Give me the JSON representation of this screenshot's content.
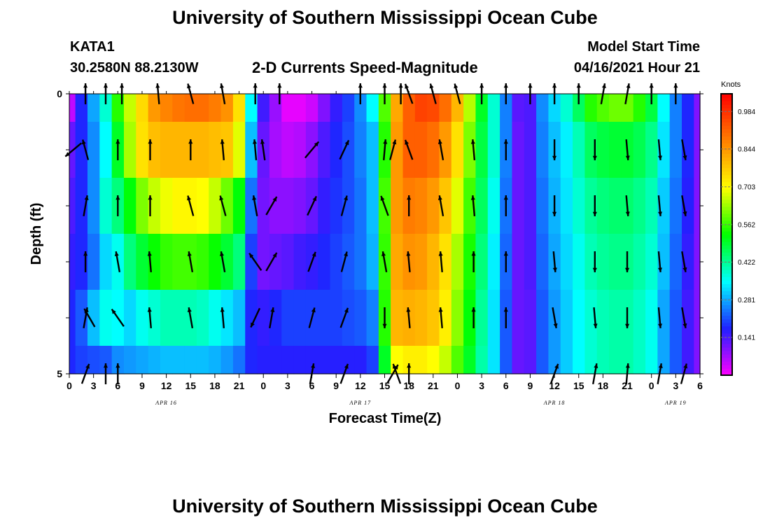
{
  "page": {
    "title_top": "University of Southern Mississippi Ocean Cube",
    "title_bottom": "University of Southern Mississippi Ocean Cube",
    "station": "KATA1",
    "coords": "30.2580N  88.2130W",
    "plot_title": "2-D Currents Speed-Magnitude",
    "start_label": "Model Start Time",
    "start_value": "04/16/2021 Hour 21"
  },
  "colors": {
    "arrow": "#000000",
    "colormap": [
      "#ff00ff",
      "#2020ff",
      "#00ffff",
      "#00ff00",
      "#ffff00",
      "#ff8000",
      "#ff0000"
    ]
  },
  "chart_data": {
    "type": "heatmap",
    "title": "2-D Currents Speed-Magnitude",
    "xlabel": "Forecast Time(Z)",
    "ylabel": "Depth (ft)",
    "x_tick_labels": [
      "0",
      "3",
      "6",
      "9",
      "12",
      "15",
      "18",
      "21",
      "0",
      "3",
      "6",
      "9",
      "12",
      "15",
      "18",
      "21",
      "0",
      "3",
      "6",
      "9",
      "12",
      "15",
      "18",
      "21",
      "0",
      "3",
      "6"
    ],
    "date_labels": [
      "APR 16",
      "APR 17",
      "APR 18",
      "APR 19"
    ],
    "date_label_ticks": [
      4,
      12,
      20,
      25
    ],
    "y_tick_labels": [
      "0",
      "5"
    ],
    "xlim_hours": [
      0,
      78
    ],
    "ylim_ft": [
      0,
      5
    ],
    "colorbar": {
      "title": "Knots",
      "tick_labels": [
        "0.984",
        "0.844",
        "0.703",
        "0.562",
        "0.422",
        "0.281",
        "0.141"
      ],
      "range": [
        0,
        1.05
      ]
    },
    "hours": [
      0,
      1.5,
      3,
      4.5,
      6,
      7.5,
      9,
      10.5,
      12,
      13.5,
      15,
      16.5,
      18,
      19.5,
      21,
      22.5,
      24,
      25.5,
      27,
      28.5,
      30,
      31.5,
      33,
      34.5,
      36,
      37.5,
      39,
      40.5,
      42,
      43.5,
      45,
      46.5,
      48,
      49.5,
      51,
      52.5,
      54,
      55.5,
      57,
      58.5,
      60,
      61.5,
      63,
      64.5,
      66,
      67.5,
      69,
      70.5,
      72,
      73.5,
      75,
      76.5,
      78
    ],
    "depth_layers_ft": [
      0.25,
      1.25,
      2.25,
      3.25,
      4.25,
      4.75
    ],
    "speed_knots": [
      [
        0.05,
        0.18,
        0.28,
        0.38,
        0.55,
        0.66,
        0.75,
        0.84,
        0.87,
        0.89,
        0.9,
        0.9,
        0.88,
        0.85,
        0.74,
        0.35,
        0.15,
        0.08,
        0.02,
        0.02,
        0.04,
        0.1,
        0.16,
        0.2,
        0.26,
        0.35,
        0.58,
        0.82,
        0.92,
        0.96,
        0.95,
        0.9,
        0.8,
        0.65,
        0.5,
        0.38,
        0.25,
        0.13,
        0.14,
        0.26,
        0.32,
        0.38,
        0.46,
        0.55,
        0.58,
        0.6,
        0.6,
        0.55,
        0.48,
        0.35,
        0.25,
        0.18,
        0.1
      ],
      [
        0.12,
        0.18,
        0.26,
        0.35,
        0.5,
        0.64,
        0.74,
        0.79,
        0.8,
        0.8,
        0.8,
        0.8,
        0.79,
        0.78,
        0.68,
        0.3,
        0.12,
        0.07,
        0.05,
        0.06,
        0.09,
        0.14,
        0.18,
        0.21,
        0.25,
        0.3,
        0.55,
        0.84,
        0.92,
        0.92,
        0.9,
        0.84,
        0.74,
        0.61,
        0.48,
        0.38,
        0.25,
        0.12,
        0.14,
        0.25,
        0.3,
        0.34,
        0.4,
        0.46,
        0.48,
        0.49,
        0.49,
        0.47,
        0.43,
        0.33,
        0.25,
        0.18,
        0.1
      ],
      [
        0.14,
        0.18,
        0.26,
        0.38,
        0.44,
        0.52,
        0.61,
        0.66,
        0.69,
        0.71,
        0.71,
        0.7,
        0.66,
        0.6,
        0.52,
        0.24,
        0.11,
        0.09,
        0.09,
        0.1,
        0.12,
        0.16,
        0.19,
        0.21,
        0.24,
        0.3,
        0.57,
        0.84,
        0.88,
        0.87,
        0.84,
        0.78,
        0.68,
        0.57,
        0.46,
        0.36,
        0.24,
        0.12,
        0.14,
        0.24,
        0.29,
        0.33,
        0.38,
        0.42,
        0.44,
        0.45,
        0.45,
        0.43,
        0.4,
        0.31,
        0.24,
        0.17,
        0.1
      ],
      [
        0.16,
        0.18,
        0.24,
        0.32,
        0.36,
        0.44,
        0.49,
        0.53,
        0.56,
        0.57,
        0.57,
        0.56,
        0.53,
        0.49,
        0.44,
        0.2,
        0.11,
        0.12,
        0.13,
        0.15,
        0.16,
        0.18,
        0.2,
        0.22,
        0.24,
        0.29,
        0.56,
        0.82,
        0.85,
        0.84,
        0.8,
        0.74,
        0.64,
        0.54,
        0.44,
        0.34,
        0.23,
        0.12,
        0.14,
        0.23,
        0.28,
        0.32,
        0.36,
        0.4,
        0.42,
        0.43,
        0.43,
        0.41,
        0.38,
        0.3,
        0.23,
        0.16,
        0.1
      ],
      [
        0.18,
        0.22,
        0.3,
        0.36,
        0.35,
        0.32,
        0.36,
        0.38,
        0.4,
        0.4,
        0.4,
        0.39,
        0.36,
        0.33,
        0.3,
        0.18,
        0.16,
        0.18,
        0.2,
        0.2,
        0.2,
        0.2,
        0.2,
        0.21,
        0.22,
        0.25,
        0.55,
        0.8,
        0.81,
        0.8,
        0.78,
        0.72,
        0.62,
        0.52,
        0.42,
        0.33,
        0.22,
        0.12,
        0.13,
        0.22,
        0.27,
        0.31,
        0.35,
        0.38,
        0.4,
        0.41,
        0.41,
        0.39,
        0.36,
        0.28,
        0.22,
        0.15,
        0.1
      ],
      [
        0.18,
        0.2,
        0.21,
        0.22,
        0.26,
        0.27,
        0.28,
        0.29,
        0.3,
        0.3,
        0.3,
        0.3,
        0.29,
        0.27,
        0.24,
        0.18,
        0.17,
        0.17,
        0.17,
        0.17,
        0.17,
        0.17,
        0.17,
        0.17,
        0.17,
        0.2,
        0.5,
        0.7,
        0.72,
        0.72,
        0.7,
        0.66,
        0.58,
        0.5,
        0.41,
        0.33,
        0.22,
        0.12,
        0.13,
        0.22,
        0.27,
        0.31,
        0.35,
        0.38,
        0.4,
        0.41,
        0.41,
        0.39,
        0.36,
        0.28,
        0.22,
        0.15,
        0.1
      ]
    ],
    "arrow_rows": [
      {
        "depth_ft": 0.0,
        "vectors": [
          [
            2,
            270
          ],
          [
            4.5,
            270
          ],
          [
            6.5,
            270
          ],
          [
            11,
            265
          ],
          [
            15,
            255
          ],
          [
            19,
            260
          ],
          [
            23,
            270
          ],
          [
            26,
            270
          ],
          [
            36,
            270
          ],
          [
            39,
            270
          ],
          [
            41,
            270
          ],
          [
            42,
            250
          ],
          [
            45,
            255
          ],
          [
            48,
            255
          ],
          [
            51,
            270
          ],
          [
            54,
            270
          ],
          [
            57,
            270
          ],
          [
            60,
            270
          ],
          [
            63,
            270
          ],
          [
            66,
            280
          ],
          [
            69,
            280
          ],
          [
            72,
            270
          ],
          [
            75,
            270
          ]
        ]
      },
      {
        "depth_ft": 1.0,
        "vectors": [
          [
            0.5,
            140
          ],
          [
            2,
            255
          ],
          [
            6,
            270
          ],
          [
            10,
            270
          ],
          [
            15,
            270
          ],
          [
            19,
            265
          ],
          [
            23,
            265
          ],
          [
            24,
            262
          ],
          [
            30,
            -50
          ],
          [
            34,
            -65
          ],
          [
            39,
            -85
          ],
          [
            40,
            -75
          ],
          [
            42,
            250
          ],
          [
            46,
            260
          ],
          [
            50,
            265
          ],
          [
            54,
            270
          ],
          [
            60,
            90
          ],
          [
            65,
            90
          ],
          [
            69,
            85
          ],
          [
            73,
            85
          ],
          [
            76,
            80
          ]
        ]
      },
      {
        "depth_ft": 2.0,
        "vectors": [
          [
            2,
            280
          ],
          [
            6,
            270
          ],
          [
            10,
            270
          ],
          [
            15,
            255
          ],
          [
            19,
            255
          ],
          [
            23,
            260
          ],
          [
            25,
            -60
          ],
          [
            30,
            -65
          ],
          [
            34,
            -75
          ],
          [
            39,
            -110
          ],
          [
            42,
            270
          ],
          [
            46,
            260
          ],
          [
            50,
            265
          ],
          [
            54,
            270
          ],
          [
            60,
            90
          ],
          [
            65,
            90
          ],
          [
            69,
            85
          ],
          [
            73,
            85
          ],
          [
            76,
            80
          ]
        ]
      },
      {
        "depth_ft": 3.0,
        "vectors": [
          [
            2,
            -90
          ],
          [
            6,
            260
          ],
          [
            10,
            265
          ],
          [
            15,
            260
          ],
          [
            19,
            260
          ],
          [
            23,
            -125
          ],
          [
            25,
            -60
          ],
          [
            30,
            -70
          ],
          [
            34,
            -75
          ],
          [
            39,
            -100
          ],
          [
            42,
            265
          ],
          [
            46,
            265
          ],
          [
            50,
            270
          ],
          [
            54,
            270
          ],
          [
            60,
            85
          ],
          [
            65,
            90
          ],
          [
            69,
            90
          ],
          [
            73,
            85
          ],
          [
            76,
            80
          ]
        ]
      },
      {
        "depth_ft": 4.0,
        "vectors": [
          [
            2,
            -80
          ],
          [
            2.5,
            240
          ],
          [
            6,
            235
          ],
          [
            10,
            265
          ],
          [
            15,
            260
          ],
          [
            19,
            265
          ],
          [
            23,
            115
          ],
          [
            25,
            -80
          ],
          [
            30,
            -75
          ],
          [
            34,
            -70
          ],
          [
            39,
            90
          ],
          [
            42,
            265
          ],
          [
            46,
            265
          ],
          [
            50,
            270
          ],
          [
            54,
            270
          ],
          [
            60,
            80
          ],
          [
            65,
            85
          ],
          [
            69,
            90
          ],
          [
            73,
            85
          ],
          [
            76,
            80
          ]
        ]
      },
      {
        "depth_ft": 5.0,
        "vectors": [
          [
            2,
            -70
          ],
          [
            4.5,
            -90
          ],
          [
            6,
            -90
          ],
          [
            30,
            -80
          ],
          [
            34,
            -70
          ],
          [
            40,
            -60
          ],
          [
            40.5,
            -110
          ],
          [
            42,
            -90
          ],
          [
            60,
            -70
          ],
          [
            65,
            -80
          ],
          [
            69,
            -85
          ],
          [
            73,
            -80
          ],
          [
            76,
            -75
          ]
        ]
      }
    ]
  }
}
